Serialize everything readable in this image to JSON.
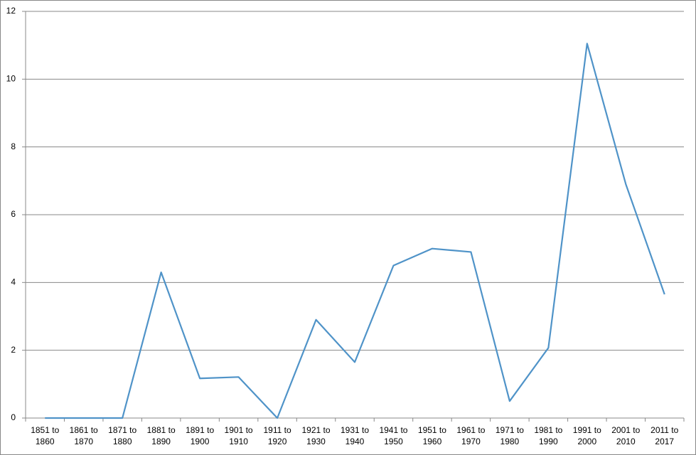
{
  "chart_data": {
    "type": "line",
    "categories": [
      "1851 to 1860",
      "1861 to 1870",
      "1871 to 1880",
      "1881 to 1890",
      "1891 to 1900",
      "1901 to 1910",
      "1911 to 1920",
      "1921 to 1930",
      "1931 to 1940",
      "1941 to 1950",
      "1951 to 1960",
      "1961 to 1970",
      "1971 to 1980",
      "1981 to 1990",
      "1991 to 2000",
      "2001 to 2010",
      "2011 to 2017"
    ],
    "values": [
      0,
      0,
      0,
      4.3,
      1.17,
      1.21,
      0,
      2.9,
      1.65,
      4.5,
      5.0,
      4.9,
      0.5,
      2.07,
      11.05,
      6.9,
      3.65
    ],
    "color": "#4f93c8",
    "ylim": [
      0,
      12
    ],
    "yticks": [
      0,
      2,
      4,
      6,
      8,
      10,
      12
    ],
    "grid": true
  }
}
